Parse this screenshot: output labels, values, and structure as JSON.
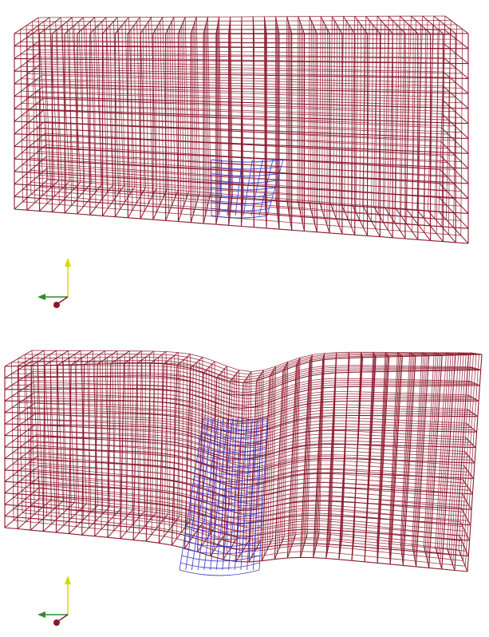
{
  "colors": {
    "mesh": "#8b1a2b",
    "highlight": "#3333cc",
    "axis_x": "#2e8b2e",
    "axis_y": "#d8d800",
    "axis_z": "#8b1a2b",
    "background": "#ffffff"
  },
  "panels": [
    {
      "id": "undeformed",
      "deformed": false
    },
    {
      "id": "deformed",
      "deformed": true
    }
  ],
  "mesh": {
    "columns": 36,
    "rows": 14,
    "depth_layers": 4
  },
  "highlight": {
    "region": "center-bottom"
  },
  "axes": {
    "icons": [
      "axis-x-cone-icon",
      "axis-y-cone-icon",
      "axis-z-sphere-icon"
    ]
  }
}
